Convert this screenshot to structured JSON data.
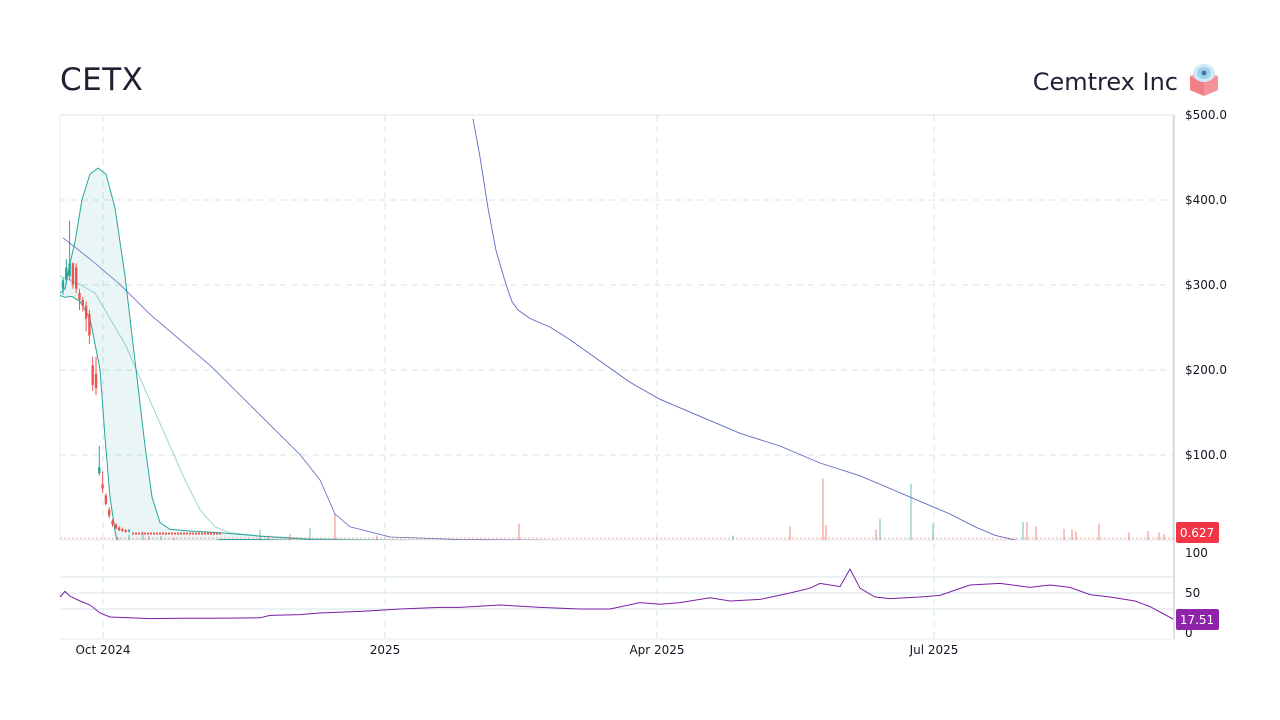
{
  "header": {
    "ticker": "CETX",
    "company": "Cemtrex Inc"
  },
  "logo_icon": "cemtrex-logo-icon",
  "colors": {
    "up": "#26a69a",
    "down": "#ef5350",
    "bollinger": "#26a69a",
    "sma": "#5c6bc0",
    "rsi": "#7b1fa2",
    "last_price_badge": "#f23645",
    "rsi_badge": "#8e24aa",
    "grid": "#d6e4ec"
  },
  "chart_data": [
    {
      "type": "line",
      "title": "",
      "ylim": [
        0,
        500
      ],
      "y_ticks": [
        "$500.0",
        "$400.0",
        "$300.0",
        "$200.0",
        "$100.0"
      ],
      "x_ticks": [
        "Oct 2024",
        "2025",
        "Apr 2025",
        "Jul 2025"
      ],
      "last_price": "0.627",
      "candles": [
        {
          "o": 305,
          "h": 318,
          "l": 298,
          "c": 315
        },
        {
          "o": 315,
          "h": 340,
          "l": 310,
          "c": 330
        },
        {
          "o": 320,
          "h": 385,
          "l": 315,
          "c": 335
        },
        {
          "o": 335,
          "h": 336,
          "l": 305,
          "c": 310
        },
        {
          "o": 330,
          "h": 335,
          "l": 300,
          "c": 305
        },
        {
          "o": 300,
          "h": 305,
          "l": 280,
          "c": 292
        },
        {
          "o": 292,
          "h": 295,
          "l": 278,
          "c": 285
        },
        {
          "o": 285,
          "h": 290,
          "l": 255,
          "c": 270
        },
        {
          "o": 275,
          "h": 280,
          "l": 240,
          "c": 250
        },
        {
          "o": 215,
          "h": 225,
          "l": 185,
          "c": 192
        },
        {
          "o": 205,
          "h": 225,
          "l": 180,
          "c": 188
        },
        {
          "o": 88,
          "h": 120,
          "l": 85,
          "c": 95
        },
        {
          "o": 75,
          "h": 90,
          "l": 65,
          "c": 70
        },
        {
          "o": 62,
          "h": 64,
          "l": 50,
          "c": 52
        },
        {
          "o": 45,
          "h": 48,
          "l": 35,
          "c": 38
        },
        {
          "o": 32,
          "h": 34,
          "l": 25,
          "c": 28
        },
        {
          "o": 28,
          "h": 29,
          "l": 22,
          "c": 23
        },
        {
          "o": 24,
          "h": 26,
          "l": 20,
          "c": 21
        },
        {
          "o": 22,
          "h": 24,
          "l": 19,
          "c": 20
        },
        {
          "o": 21,
          "h": 22,
          "l": 18,
          "c": 19
        },
        {
          "o": 20,
          "h": 22,
          "l": 18,
          "c": 21
        }
      ],
      "series": [
        {
          "key": "bb_upper",
          "points": [
            [
              0,
              300
            ],
            [
              5,
              305
            ],
            [
              10,
              335
            ],
            [
              15,
              360
            ],
            [
              22,
              410
            ],
            [
              30,
              440
            ],
            [
              38,
              447
            ],
            [
              46,
              440
            ],
            [
              55,
              400
            ],
            [
              65,
              320
            ],
            [
              75,
              220
            ],
            [
              85,
              120
            ],
            [
              92,
              60
            ],
            [
              100,
              30
            ],
            [
              110,
              22
            ],
            [
              130,
              20
            ],
            [
              160,
              18
            ],
            [
              200,
              14
            ],
            [
              250,
              10
            ],
            [
              300,
              9
            ],
            [
              400,
              9
            ],
            [
              500,
              8
            ],
            [
              620,
              7
            ],
            [
              700,
              6
            ],
            [
              850,
              6
            ],
            [
              1000,
              5
            ],
            [
              1113,
              5
            ]
          ]
        },
        {
          "key": "bb_lower",
          "points": [
            [
              0,
              297
            ],
            [
              5,
              295
            ],
            [
              12,
              296
            ],
            [
              20,
              290
            ],
            [
              30,
              270
            ],
            [
              40,
              210
            ],
            [
              45,
              130
            ],
            [
              50,
              60
            ],
            [
              55,
              20
            ],
            [
              60,
              -10
            ],
            [
              70,
              -20
            ],
            [
              90,
              -20
            ],
            [
              130,
              -5
            ],
            [
              140,
              5
            ],
            [
              160,
              10
            ],
            [
              200,
              10
            ],
            [
              300,
              7
            ],
            [
              500,
              6
            ],
            [
              700,
              5
            ],
            [
              1113,
              4
            ]
          ]
        },
        {
          "key": "bb_mid",
          "points": [
            [
              0,
              320
            ],
            [
              20,
              310
            ],
            [
              35,
              300
            ],
            [
              50,
              270
            ],
            [
              65,
              240
            ],
            [
              80,
              200
            ],
            [
              95,
              160
            ],
            [
              110,
              120
            ],
            [
              125,
              80
            ],
            [
              140,
              45
            ],
            [
              155,
              25
            ],
            [
              170,
              18
            ],
            [
              200,
              14
            ],
            [
              250,
              11
            ],
            [
              400,
              8
            ],
            [
              700,
              6
            ],
            [
              1113,
              5
            ]
          ]
        },
        {
          "key": "sma",
          "points": [
            [
              3,
              365
            ],
            [
              30,
              340
            ],
            [
              60,
              310
            ],
            [
              90,
              275
            ],
            [
              120,
              245
            ],
            [
              150,
              215
            ],
            [
              180,
              180
            ],
            [
              210,
              145
            ],
            [
              240,
              110
            ],
            [
              260,
              80
            ],
            [
              275,
              40
            ],
            [
              290,
              25
            ],
            [
              330,
              13
            ],
            [
              400,
              10
            ],
            [
              500,
              9
            ],
            [
              700,
              8
            ],
            [
              1113,
              7
            ]
          ]
        },
        {
          "key": "sma_long",
          "points": [
            [
              413,
              505
            ],
            [
              420,
              460
            ],
            [
              428,
              400
            ],
            [
              436,
              350
            ],
            [
              446,
              310
            ],
            [
              452,
              290
            ],
            [
              458,
              280
            ],
            [
              470,
              270
            ],
            [
              490,
              260
            ],
            [
              510,
              245
            ],
            [
              540,
              220
            ],
            [
              570,
              195
            ],
            [
              600,
              175
            ],
            [
              640,
              155
            ],
            [
              680,
              135
            ],
            [
              720,
              120
            ],
            [
              760,
              100
            ],
            [
              800,
              85
            ],
            [
              830,
              70
            ],
            [
              860,
              55
            ],
            [
              890,
              40
            ],
            [
              915,
              25
            ],
            [
              935,
              15
            ],
            [
              960,
              8
            ],
            [
              990,
              6
            ],
            [
              1113,
              5
            ]
          ]
        }
      ],
      "volume_bars": [
        {
          "x": 57,
          "v": 4,
          "up": false
        },
        {
          "x": 68,
          "v": 7,
          "up": true
        },
        {
          "x": 82,
          "v": 11,
          "up": true
        },
        {
          "x": 88,
          "v": 6,
          "up": false
        },
        {
          "x": 100,
          "v": 5,
          "up": true
        },
        {
          "x": 113,
          "v": 3,
          "up": false
        },
        {
          "x": 199,
          "v": 14,
          "up": true
        },
        {
          "x": 207,
          "v": 6,
          "up": false
        },
        {
          "x": 229,
          "v": 8,
          "up": false
        },
        {
          "x": 249,
          "v": 16,
          "up": true
        },
        {
          "x": 274,
          "v": 35,
          "up": false
        },
        {
          "x": 316,
          "v": 6,
          "up": false
        },
        {
          "x": 458,
          "v": 22,
          "up": false
        },
        {
          "x": 672,
          "v": 6,
          "up": true
        },
        {
          "x": 729,
          "v": 18,
          "up": false
        },
        {
          "x": 762,
          "v": 82,
          "up": false
        },
        {
          "x": 765,
          "v": 20,
          "up": false
        },
        {
          "x": 815,
          "v": 14,
          "up": false
        },
        {
          "x": 819,
          "v": 28,
          "up": true
        },
        {
          "x": 850,
          "v": 75,
          "up": true
        },
        {
          "x": 872,
          "v": 22,
          "up": true
        },
        {
          "x": 962,
          "v": 24,
          "up": true
        },
        {
          "x": 966,
          "v": 24,
          "up": false
        },
        {
          "x": 975,
          "v": 18,
          "up": false
        },
        {
          "x": 1003,
          "v": 15,
          "up": false
        },
        {
          "x": 1011,
          "v": 14,
          "up": false
        },
        {
          "x": 1015,
          "v": 12,
          "up": false
        },
        {
          "x": 1038,
          "v": 22,
          "up": false
        },
        {
          "x": 1068,
          "v": 10,
          "up": false
        },
        {
          "x": 1087,
          "v": 12,
          "up": false
        },
        {
          "x": 1098,
          "v": 10,
          "up": false
        },
        {
          "x": 1103,
          "v": 8,
          "up": false
        }
      ]
    },
    {
      "type": "line",
      "title": "",
      "ylim": [
        0,
        100
      ],
      "y_ticks": [
        "100",
        "50",
        "0"
      ],
      "last_value": "17.51",
      "series": [
        {
          "key": "rsi",
          "points": [
            [
              0,
              45
            ],
            [
              5,
              52
            ],
            [
              10,
              46
            ],
            [
              20,
              40
            ],
            [
              30,
              35
            ],
            [
              40,
              25
            ],
            [
              50,
              20
            ],
            [
              70,
              19
            ],
            [
              90,
              18
            ],
            [
              120,
              18.5
            ],
            [
              150,
              18.5
            ],
            [
              200,
              19
            ],
            [
              210,
              22
            ],
            [
              240,
              23
            ],
            [
              260,
              25
            ],
            [
              300,
              27
            ],
            [
              340,
              30
            ],
            [
              380,
              32
            ],
            [
              400,
              32
            ],
            [
              440,
              35
            ],
            [
              480,
              32
            ],
            [
              520,
              30
            ],
            [
              540,
              30
            ],
            [
              550,
              30
            ],
            [
              580,
              38
            ],
            [
              600,
              36
            ],
            [
              620,
              38
            ],
            [
              650,
              44
            ],
            [
              670,
              40
            ],
            [
              700,
              42
            ],
            [
              730,
              50
            ],
            [
              750,
              56
            ],
            [
              760,
              62
            ],
            [
              780,
              58
            ],
            [
              790,
              80
            ],
            [
              800,
              56
            ],
            [
              815,
              45
            ],
            [
              830,
              43
            ],
            [
              860,
              45
            ],
            [
              880,
              47
            ],
            [
              910,
              60
            ],
            [
              940,
              62
            ],
            [
              970,
              57
            ],
            [
              990,
              60
            ],
            [
              1010,
              57
            ],
            [
              1030,
              48
            ],
            [
              1050,
              45
            ],
            [
              1075,
              40
            ],
            [
              1090,
              33
            ],
            [
              1113,
              17.51
            ]
          ]
        }
      ]
    }
  ]
}
